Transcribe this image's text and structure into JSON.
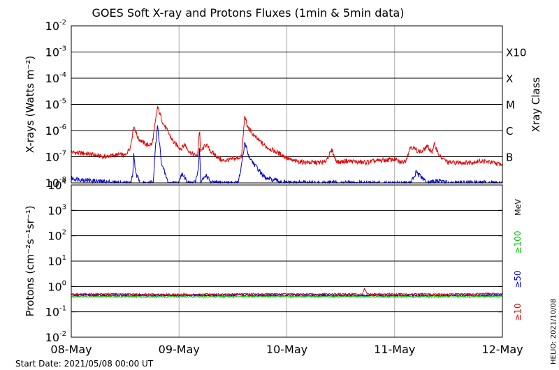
{
  "chart_data": [
    {
      "type": "line",
      "title": "GOES Soft X-ray and Protons Fluxes   (1min & 5min data)",
      "xlabel": "",
      "ylabel": "X-rays (Watts m⁻²)",
      "y_scale": "log",
      "ylim": [
        1e-08,
        0.01
      ],
      "xlim_days": [
        0,
        4
      ],
      "x_ticks": [
        "08-May",
        "09-May",
        "10-May",
        "11-May",
        "12-May"
      ],
      "y_ticks": [
        {
          "value": 0.01,
          "base": "10",
          "exp": "-2"
        },
        {
          "value": 0.001,
          "base": "10",
          "exp": "-3"
        },
        {
          "value": 0.0001,
          "base": "10",
          "exp": "-4"
        },
        {
          "value": 1e-05,
          "base": "10",
          "exp": "-5"
        },
        {
          "value": 1e-06,
          "base": "10",
          "exp": "-6"
        },
        {
          "value": 1e-07,
          "base": "10",
          "exp": "-7"
        },
        {
          "value": 1e-08,
          "base": "10",
          "exp": "-8"
        }
      ],
      "right_axis_label": "Xray Class",
      "class_labels": [
        {
          "label": "X10",
          "value": 0.001
        },
        {
          "label": "X",
          "value": 0.0001
        },
        {
          "label": "M",
          "value": 1e-05
        },
        {
          "label": "C",
          "value": 1e-06
        },
        {
          "label": "B",
          "value": 1e-07
        }
      ],
      "grid": true,
      "series": [
        {
          "color": "#e00000",
          "x_days": [
            0,
            0.15,
            0.3,
            0.45,
            0.5,
            0.55,
            0.58,
            0.62,
            0.7,
            0.75,
            0.78,
            0.8,
            0.85,
            0.95,
            1.02,
            1.05,
            1.1,
            1.17,
            1.19,
            1.2,
            1.25,
            1.3,
            1.4,
            1.5,
            1.58,
            1.61,
            1.63,
            1.7,
            1.8,
            1.95,
            2.05,
            2.2,
            2.35,
            2.42,
            2.45,
            2.48,
            2.55,
            2.7,
            2.85,
            3.0,
            3.05,
            3.1,
            3.15,
            3.2,
            3.25,
            3.3,
            3.35,
            3.37,
            3.42,
            3.5,
            3.6,
            3.7,
            3.8,
            3.9,
            4.0
          ],
          "y": [
            1.5e-07,
            1.3e-07,
            1e-07,
            1.2e-07,
            1.1e-07,
            2.5e-07,
            1.5e-06,
            5e-07,
            2.8e-07,
            3e-07,
            2e-06,
            8e-06,
            2e-06,
            3.5e-07,
            2e-07,
            3e-07,
            1.5e-07,
            1e-07,
            1.2e-06,
            1.5e-07,
            3e-07,
            1.5e-07,
            7e-08,
            8e-08,
            1e-07,
            4e-06,
            1.5e-06,
            6e-07,
            2.5e-07,
            1.2e-07,
            7e-08,
            6e-08,
            6e-08,
            1.8e-07,
            8e-08,
            6e-08,
            7e-08,
            6e-08,
            7e-08,
            8e-08,
            6e-08,
            7e-08,
            2.5e-07,
            1.8e-07,
            1.5e-07,
            2.5e-07,
            1.5e-07,
            3e-07,
            1e-07,
            6e-08,
            6e-08,
            6e-08,
            7e-08,
            6e-08,
            5e-08
          ]
        },
        {
          "color": "#0000d0",
          "x_days": [
            0,
            0.2,
            0.45,
            0.55,
            0.57,
            0.58,
            0.6,
            0.65,
            0.7,
            0.76,
            0.78,
            0.8,
            0.84,
            0.9,
            1.0,
            1.03,
            1.08,
            1.15,
            1.18,
            1.19,
            1.2,
            1.25,
            1.3,
            1.4,
            1.55,
            1.59,
            1.61,
            1.65,
            1.7,
            1.8,
            2.0,
            2.5,
            3.15,
            3.2,
            3.3,
            3.4,
            3.5,
            4.0
          ],
          "y": [
            1.5e-08,
            1.2e-08,
            1e-08,
            1e-08,
            2e-08,
            1.3e-07,
            2e-08,
            1e-08,
            1e-08,
            1e-08,
            2e-07,
            1.5e-06,
            5e-08,
            1e-08,
            1e-08,
            2.5e-08,
            1e-08,
            1e-08,
            4e-08,
            3e-07,
            1e-08,
            2e-08,
            1e-08,
            1e-08,
            1e-08,
            8e-08,
            3.5e-07,
            1e-07,
            5e-08,
            1.5e-08,
            1e-08,
            1e-08,
            1e-08,
            2.5e-08,
            1e-08,
            1.2e-08,
            1e-08,
            1e-08
          ]
        }
      ]
    },
    {
      "type": "line",
      "xlabel": "",
      "ylabel": "Protons (cm⁻²s⁻¹sr⁻¹)",
      "y_scale": "log",
      "ylim": [
        0.01,
        10000
      ],
      "xlim_days": [
        0,
        4
      ],
      "y_ticks": [
        {
          "value": 10000,
          "base": "10",
          "exp": "4"
        },
        {
          "value": 1000,
          "base": "10",
          "exp": "3"
        },
        {
          "value": 100,
          "base": "10",
          "exp": "2"
        },
        {
          "value": 10,
          "base": "10",
          "exp": "1"
        },
        {
          "value": 1,
          "base": "10",
          "exp": "0"
        },
        {
          "value": 0.1,
          "base": "10",
          "exp": "-1"
        },
        {
          "value": 0.01,
          "base": "10",
          "exp": "-2"
        }
      ],
      "threshold": 10,
      "grid": true,
      "energy_unit": "MeV",
      "series": [
        {
          "name": "≥10",
          "color": "#e00000",
          "x_days": [
            0,
            0.5,
            1,
            1.5,
            2,
            2.5,
            2.7,
            2.72,
            2.75,
            3,
            3.5,
            4
          ],
          "y": [
            0.5,
            0.5,
            0.48,
            0.5,
            0.5,
            0.5,
            0.5,
            0.8,
            0.5,
            0.5,
            0.5,
            0.52
          ]
        },
        {
          "name": "≥50",
          "color": "#0000d0",
          "x_days": [
            0,
            1,
            2,
            3,
            4
          ],
          "y": [
            0.45,
            0.44,
            0.45,
            0.44,
            0.45
          ]
        },
        {
          "name": "≥100",
          "color": "#00c000",
          "x_days": [
            0,
            1,
            2,
            3,
            4
          ],
          "y": [
            0.4,
            0.39,
            0.4,
            0.39,
            0.4
          ]
        }
      ]
    }
  ],
  "footer": {
    "start_date": "Start Date: 2021/05/08 00:00 UT",
    "credit": "HELIO: 2021/10/08"
  }
}
